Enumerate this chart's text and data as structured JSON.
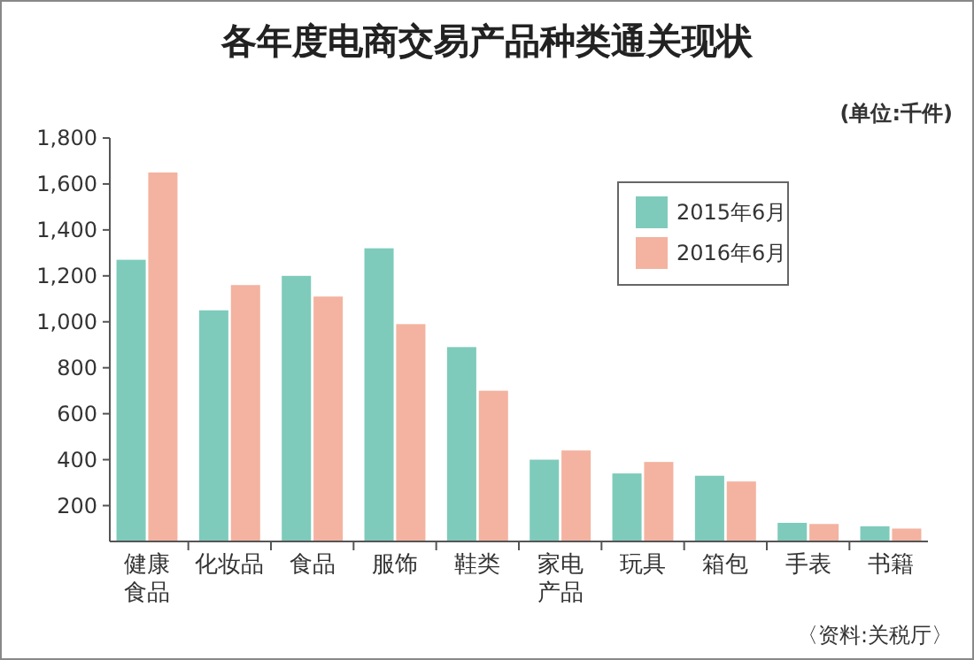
{
  "chart_data": {
    "type": "bar",
    "title": "各年度电商交易产品种类通关现状",
    "categories": [
      "健康食品",
      "化妆品",
      "食品",
      "服饰",
      "鞋类",
      "家电产品",
      "玩具",
      "箱包",
      "手表",
      "书籍"
    ],
    "series": [
      {
        "name": "2015年6月",
        "color": "#7ecbbb",
        "values": [
          1270,
          1050,
          1200,
          1320,
          890,
          400,
          340,
          330,
          125,
          110
        ]
      },
      {
        "name": "2016年6月",
        "color": "#f3b3a0",
        "values": [
          1650,
          1160,
          1110,
          990,
          700,
          440,
          390,
          305,
          120,
          100
        ]
      }
    ],
    "ylim": [
      44,
      1800
    ],
    "yticks": [
      {
        "value": 200,
        "label": "200"
      },
      {
        "value": 400,
        "label": "400"
      },
      {
        "value": 600,
        "label": "600"
      },
      {
        "value": 800,
        "label": "800"
      },
      {
        "value": 1000,
        "label": "1,000"
      },
      {
        "value": 1200,
        "label": "1,200"
      },
      {
        "value": 1400,
        "label": "1,400"
      },
      {
        "value": 1600,
        "label": "1,600"
      },
      {
        "value": 1800,
        "label": "1,800"
      }
    ],
    "legend": "top right",
    "grid": false,
    "annotations": [
      "(单位:千件)",
      "〈资料:关税厅〉"
    ]
  }
}
